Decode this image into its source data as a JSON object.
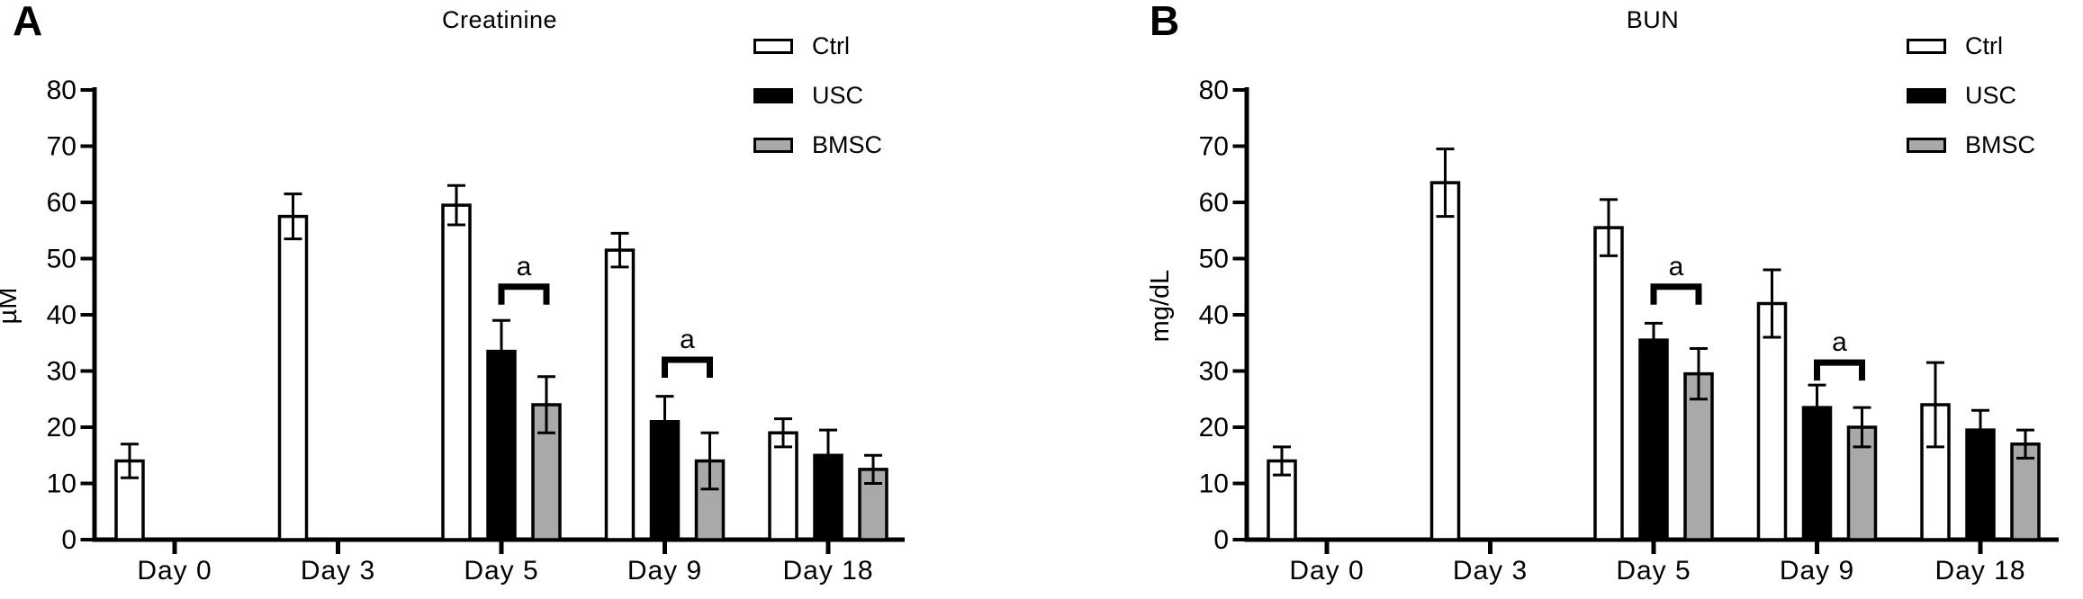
{
  "panels": [
    {
      "letter": "A",
      "title": "Creatinine",
      "ylabel": "µM"
    },
    {
      "letter": "B",
      "title": "BUN",
      "ylabel": "mg/dL"
    }
  ],
  "legend": [
    {
      "label": "Ctrl",
      "fill": "#FFFFFF"
    },
    {
      "label": "USC",
      "fill": "#000000"
    },
    {
      "label": "BMSC",
      "fill": "#A9A9A9"
    }
  ],
  "colors": {
    "axis": "#000000",
    "bar_outline": "#000000",
    "bmsc_gray": "#A9A9A9"
  },
  "chart_data": [
    {
      "type": "bar",
      "panel": "A",
      "title": "Creatinine",
      "xlabel": "",
      "ylabel": "µM",
      "ylim": [
        0,
        80
      ],
      "ytick_step": 10,
      "grid": false,
      "legend_position": "top-right",
      "categories": [
        "Day 0",
        "Day 3",
        "Day 5",
        "Day 9",
        "Day 18"
      ],
      "series": [
        {
          "name": "Ctrl",
          "fill": "#FFFFFF",
          "values": [
            14,
            57.5,
            59.5,
            51.5,
            19
          ],
          "errors": [
            3,
            4,
            3.5,
            3,
            2.5
          ]
        },
        {
          "name": "USC",
          "fill": "#000000",
          "values": [
            null,
            null,
            33.5,
            21,
            15
          ],
          "errors": [
            null,
            null,
            5.5,
            4.5,
            4.5
          ]
        },
        {
          "name": "BMSC",
          "fill": "#A9A9A9",
          "values": [
            null,
            null,
            24,
            14,
            12.5
          ],
          "errors": [
            null,
            null,
            5,
            5,
            2.5
          ]
        }
      ],
      "significance": [
        {
          "category": "Day 5",
          "between": [
            "USC",
            "BMSC"
          ],
          "label": "a",
          "y": 45
        },
        {
          "category": "Day 9",
          "between": [
            "USC",
            "BMSC"
          ],
          "label": "a",
          "y": 32
        }
      ]
    },
    {
      "type": "bar",
      "panel": "B",
      "title": "BUN",
      "xlabel": "",
      "ylabel": "mg/dL",
      "ylim": [
        0,
        80
      ],
      "ytick_step": 10,
      "grid": false,
      "legend_position": "top-right",
      "categories": [
        "Day 0",
        "Day 3",
        "Day 5",
        "Day 9",
        "Day 18"
      ],
      "series": [
        {
          "name": "Ctrl",
          "fill": "#FFFFFF",
          "values": [
            14,
            63.5,
            55.5,
            42,
            24
          ],
          "errors": [
            2.5,
            6,
            5,
            6,
            7.5
          ]
        },
        {
          "name": "USC",
          "fill": "#000000",
          "values": [
            null,
            null,
            35.5,
            23.5,
            19.5
          ],
          "errors": [
            null,
            null,
            3,
            4,
            3.5
          ]
        },
        {
          "name": "BMSC",
          "fill": "#A9A9A9",
          "values": [
            null,
            null,
            29.5,
            20,
            17
          ],
          "errors": [
            null,
            null,
            4.5,
            3.5,
            2.5
          ]
        }
      ],
      "significance": [
        {
          "category": "Day 5",
          "between": [
            "USC",
            "BMSC"
          ],
          "label": "a",
          "y": 45
        },
        {
          "category": "Day 9",
          "between": [
            "USC",
            "BMSC"
          ],
          "label": "a",
          "y": 31.5
        }
      ]
    }
  ]
}
